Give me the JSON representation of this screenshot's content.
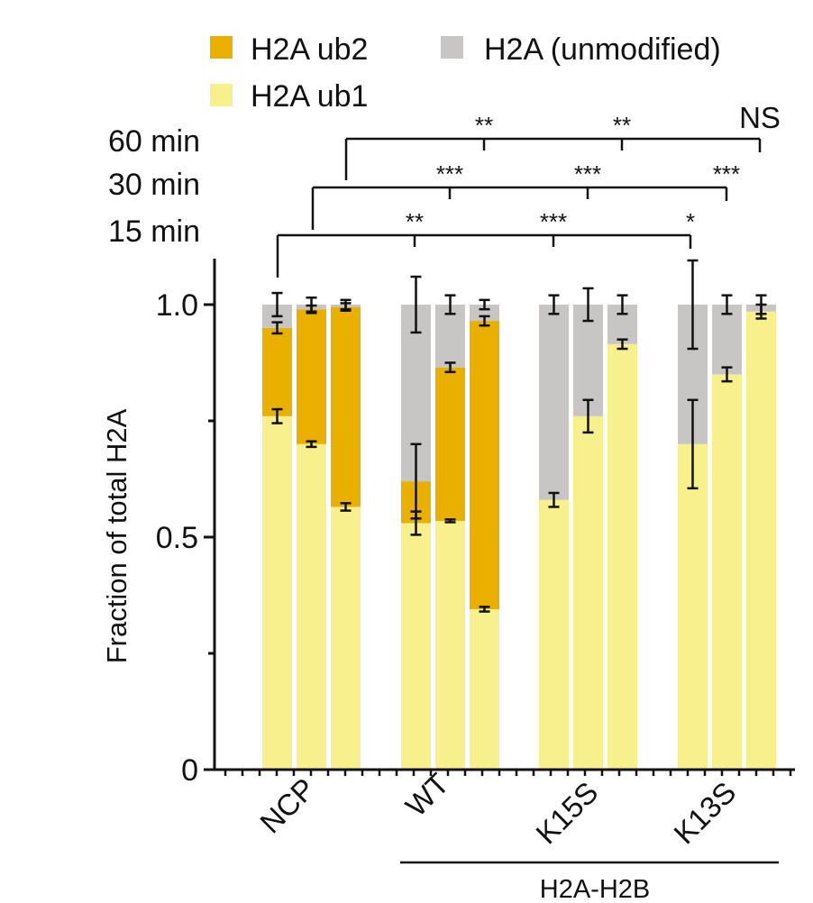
{
  "chart_data": {
    "type": "bar",
    "stacked": true,
    "title": "",
    "xlabel": "",
    "ylabel": "Fraction of total H2A",
    "ylim": [
      0,
      1.0
    ],
    "yticks": [
      {
        "v": 0,
        "label": "0"
      },
      {
        "v": 0.5,
        "label": "0.5"
      },
      {
        "v": 1.0,
        "label": "1.0"
      }
    ],
    "legend": {
      "placement": "top",
      "items": [
        {
          "key": "ub2",
          "label": "H2A ub2",
          "color": "#E9B000"
        },
        {
          "key": "unmod",
          "label": "H2A (unmodified)",
          "color": "#C8C6C5"
        },
        {
          "key": "ub1",
          "label": "H2A ub1",
          "color": "#F7F08C"
        }
      ]
    },
    "timepoints": [
      "15 min",
      "30 min",
      "60 min"
    ],
    "groups": [
      {
        "label": "NCP",
        "color": "#D0141B"
      },
      {
        "label": "WT",
        "color": "#111111"
      },
      {
        "label": "K15S",
        "color": "#111111"
      },
      {
        "label": "K13S",
        "color": "#111111"
      }
    ],
    "bracket_label": "H2A-H2B",
    "bars": [
      {
        "group": "NCP",
        "time": "15 min",
        "ub1": 0.76,
        "ub2": 0.19,
        "unmod": 0.05,
        "err_ub1": 0.015,
        "err_ub12": 0.012,
        "err_total": 0.025
      },
      {
        "group": "NCP",
        "time": "30 min",
        "ub1": 0.7,
        "ub2": 0.29,
        "unmod": 0.01,
        "err_ub1": 0.006,
        "err_ub12": 0.008,
        "err_total": 0.015
      },
      {
        "group": "NCP",
        "time": "60 min",
        "ub1": 0.565,
        "ub2": 0.43,
        "unmod": 0.005,
        "err_ub1": 0.008,
        "err_ub12": 0.008,
        "err_total": 0.01
      },
      {
        "group": "WT",
        "time": "15 min",
        "ub1": 0.53,
        "ub2": 0.09,
        "unmod": 0.38,
        "err_ub1": 0.025,
        "err_ub12": 0.08,
        "err_total": 0.06
      },
      {
        "group": "WT",
        "time": "30 min",
        "ub1": 0.535,
        "ub2": 0.33,
        "unmod": 0.135,
        "err_ub1": 0.003,
        "err_ub12": 0.01,
        "err_total": 0.02
      },
      {
        "group": "WT",
        "time": "60 min",
        "ub1": 0.345,
        "ub2": 0.62,
        "unmod": 0.035,
        "err_ub1": 0.005,
        "err_ub12": 0.01,
        "err_total": 0.01
      },
      {
        "group": "K15S",
        "time": "15 min",
        "ub1": 0.58,
        "ub2": 0,
        "unmod": 0.42,
        "err_ub1": 0.015,
        "err_ub12": null,
        "err_total": 0.02
      },
      {
        "group": "K15S",
        "time": "30 min",
        "ub1": 0.76,
        "ub2": 0,
        "unmod": 0.24,
        "err_ub1": 0.035,
        "err_ub12": null,
        "err_total": 0.035
      },
      {
        "group": "K15S",
        "time": "60 min",
        "ub1": 0.915,
        "ub2": 0,
        "unmod": 0.085,
        "err_ub1": 0.01,
        "err_ub12": null,
        "err_total": 0.02
      },
      {
        "group": "K13S",
        "time": "15 min",
        "ub1": 0.7,
        "ub2": 0,
        "unmod": 0.3,
        "err_ub1": 0.095,
        "err_ub12": null,
        "err_total": 0.095
      },
      {
        "group": "K13S",
        "time": "30 min",
        "ub1": 0.85,
        "ub2": 0,
        "unmod": 0.15,
        "err_ub1": 0.015,
        "err_ub12": null,
        "err_total": 0.02
      },
      {
        "group": "K13S",
        "time": "60 min",
        "ub1": 0.985,
        "ub2": 0,
        "unmod": 0.015,
        "err_ub1": 0.015,
        "err_ub12": null,
        "err_total": 0.02
      }
    ],
    "significance": [
      {
        "time": "15 min",
        "from": "NCP",
        "marks": [
          "**",
          "***",
          "*"
        ]
      },
      {
        "time": "30 min",
        "from": "NCP",
        "marks": [
          "***",
          "***",
          "***"
        ]
      },
      {
        "time": "60 min",
        "from": "NCP",
        "marks": [
          "**",
          "**",
          "NS"
        ]
      }
    ]
  }
}
